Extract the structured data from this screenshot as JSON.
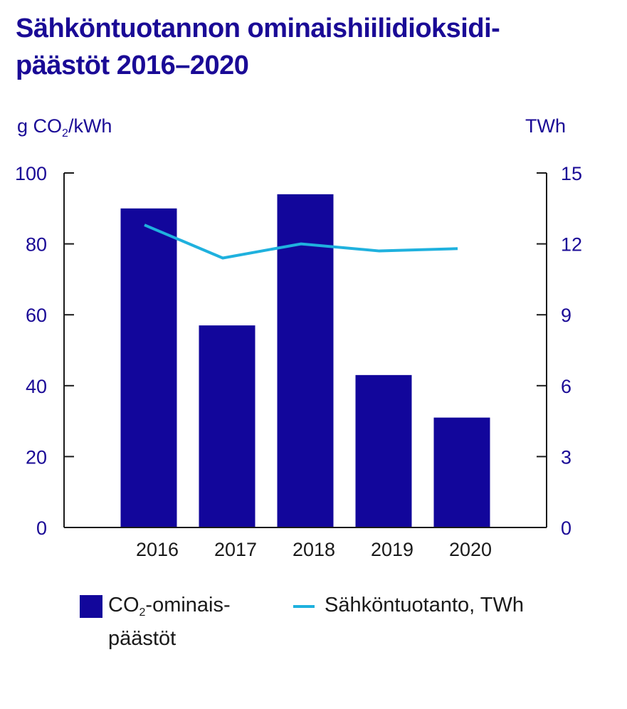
{
  "title_line1": "Sähköntuotannon ominaishiilidioksidi-",
  "title_line2": "päästöt 2016–2020",
  "left_unit_prefix": "g CO",
  "left_unit_sub": "2",
  "left_unit_suffix": "/kWh",
  "right_unit": "TWh",
  "legend": {
    "bar_prefix": "CO",
    "bar_sub": "2",
    "bar_suffix": "-ominais-",
    "bar_line2": "päästöt",
    "line_label": "Sähköntuotanto, TWh"
  },
  "colors": {
    "bar": "#12069b",
    "line": "#1fb1de",
    "text": "#1a0a96"
  },
  "chart_data": {
    "type": "bar",
    "categories": [
      "2016",
      "2017",
      "2018",
      "2019",
      "2020"
    ],
    "series": [
      {
        "name": "CO2-ominaispäästöt",
        "type": "bar",
        "axis": "left",
        "values": [
          90,
          57,
          94,
          43,
          31
        ]
      },
      {
        "name": "Sähköntuotanto, TWh",
        "type": "line",
        "axis": "right",
        "values": [
          12.8,
          11.4,
          12.0,
          11.7,
          11.8
        ]
      }
    ],
    "ylim_left": [
      0,
      100
    ],
    "yticks_left": [
      0,
      20,
      40,
      60,
      80,
      100
    ],
    "ylim_right": [
      0,
      15
    ],
    "yticks_right": [
      0,
      3,
      6,
      9,
      12,
      15
    ],
    "grid": false
  }
}
